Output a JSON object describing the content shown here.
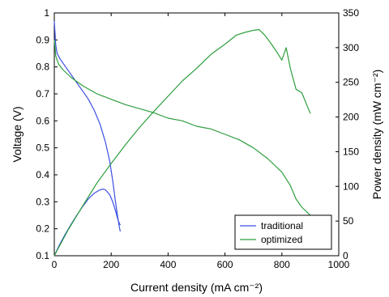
{
  "chart_data": {
    "type": "line",
    "xlabel": "Current density (mA cm⁻²)",
    "ylabel_left": "Voltage (V)",
    "ylabel_right": "Power density (mW cm⁻²)",
    "xlim": [
      0,
      1000
    ],
    "ylim_left": [
      0.1,
      1
    ],
    "ylim_right": [
      0,
      350
    ],
    "x_ticks": [
      "0",
      "200",
      "400",
      "600",
      "800",
      "1000"
    ],
    "y_left_ticks": [
      "0.1",
      "0.2",
      "0.3",
      "0.4",
      "0.5",
      "0.6",
      "0.7",
      "0.8",
      "0.9",
      "1"
    ],
    "y_right_ticks": [
      "0",
      "50",
      "100",
      "150",
      "200",
      "250",
      "300",
      "350"
    ],
    "grid": false,
    "legend_position": "bottom-right",
    "colors": {
      "traditional": "#3b4fe0",
      "optimized": "#2e9e3e"
    },
    "series": [
      {
        "name": "traditional",
        "axis": "left",
        "kind": "voltage",
        "x": [
          0,
          5,
          10,
          20,
          40,
          60,
          80,
          100,
          120,
          140,
          160,
          180,
          195,
          205,
          215,
          222,
          228,
          232
        ],
        "y": [
          0.97,
          0.88,
          0.85,
          0.83,
          0.8,
          0.77,
          0.74,
          0.71,
          0.68,
          0.64,
          0.59,
          0.52,
          0.45,
          0.38,
          0.3,
          0.25,
          0.21,
          0.19
        ]
      },
      {
        "name": "traditional",
        "axis": "right",
        "kind": "power",
        "x": [
          0,
          20,
          40,
          60,
          80,
          100,
          120,
          140,
          160,
          170,
          180,
          195,
          205,
          215,
          225,
          232
        ],
        "y": [
          0,
          17,
          32,
          46,
          59,
          71,
          82,
          90,
          95,
          96,
          95,
          88,
          78,
          65,
          50,
          44
        ]
      },
      {
        "name": "optimized",
        "axis": "left",
        "kind": "voltage",
        "x": [
          0,
          5,
          15,
          30,
          60,
          100,
          150,
          200,
          250,
          300,
          350,
          400,
          450,
          500,
          550,
          600,
          650,
          700,
          750,
          800,
          830,
          850,
          870,
          890,
          900
        ],
        "y": [
          0.9,
          0.84,
          0.81,
          0.79,
          0.76,
          0.73,
          0.7,
          0.68,
          0.66,
          0.645,
          0.63,
          0.61,
          0.6,
          0.58,
          0.57,
          0.55,
          0.53,
          0.5,
          0.46,
          0.41,
          0.36,
          0.31,
          0.28,
          0.26,
          0.25
        ]
      },
      {
        "name": "optimized",
        "axis": "right",
        "kind": "power",
        "x": [
          0,
          50,
          100,
          150,
          200,
          250,
          300,
          350,
          400,
          450,
          500,
          550,
          600,
          640,
          670,
          700,
          720,
          740,
          760,
          780,
          800,
          815,
          830,
          850,
          870,
          890,
          900
        ],
        "y": [
          0,
          38,
          72,
          105,
          133,
          160,
          185,
          208,
          230,
          252,
          270,
          290,
          305,
          318,
          322,
          325,
          326,
          318,
          307,
          295,
          282,
          300,
          270,
          240,
          235,
          215,
          205
        ]
      }
    ]
  }
}
